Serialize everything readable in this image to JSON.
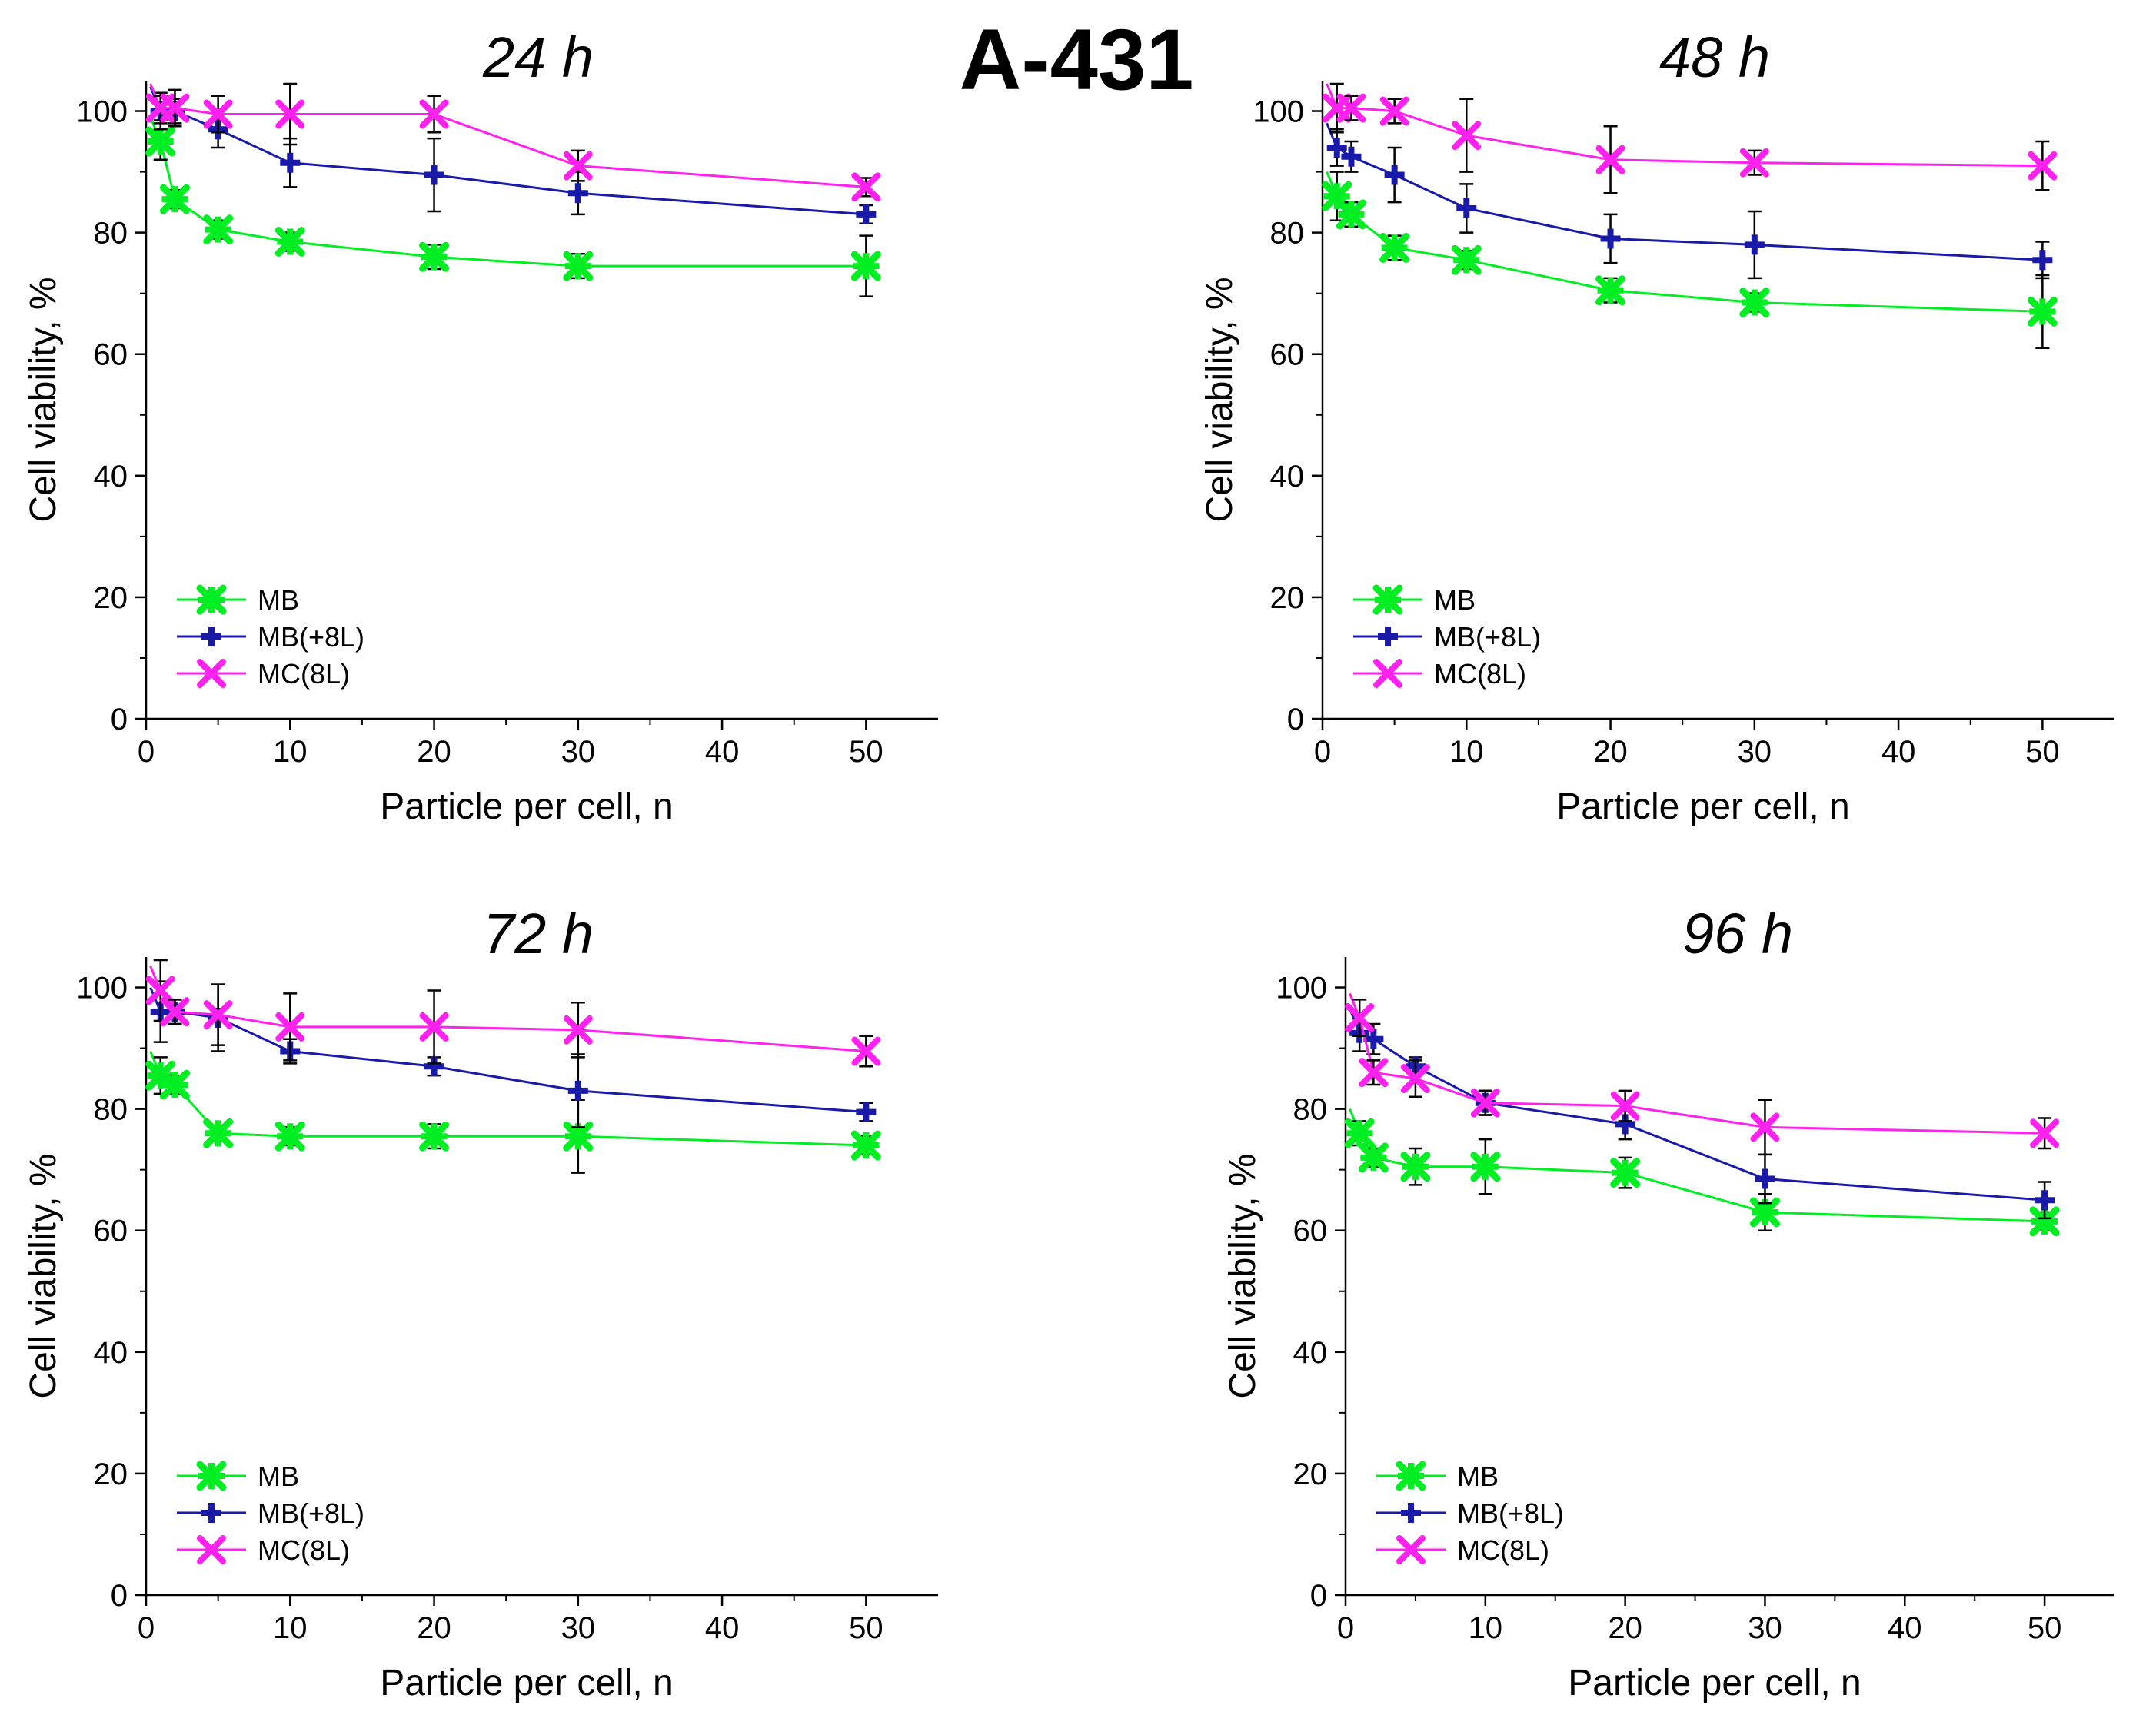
{
  "figure_title": "A-431",
  "colors": {
    "MB": "#00ee22",
    "MB(+8L)": "#1a1aa8",
    "MC(8L)": "#ff22ee",
    "error_bar": "#000000"
  },
  "chart_data": [
    {
      "type": "line",
      "title": "24 h",
      "xlabel": "Particle per cell, n",
      "ylabel": "Cell viability, %",
      "xlim": [
        0,
        55
      ],
      "ylim": [
        0,
        105
      ],
      "xticks": [
        0,
        10,
        20,
        30,
        40,
        50
      ],
      "yticks": [
        0,
        20,
        40,
        60,
        80,
        100
      ],
      "x": [
        1,
        2,
        5,
        10,
        20,
        30,
        50
      ],
      "series": [
        {
          "name": "MB",
          "values": [
            95,
            85.5,
            80.5,
            78.5,
            76,
            74.5,
            74.5
          ],
          "errors": [
            3,
            1.5,
            1.5,
            1.5,
            2,
            2,
            5
          ]
        },
        {
          "name": "MB(+8L)",
          "values": [
            100,
            100,
            97,
            91.5,
            89.5,
            86.5,
            83
          ],
          "errors": [
            3,
            2,
            3,
            4,
            6,
            3.5,
            1.5
          ]
        },
        {
          "name": "MC(8L)",
          "values": [
            100.5,
            100.5,
            99.5,
            99.5,
            99.5,
            91,
            87.5
          ],
          "errors": [
            2,
            3,
            3,
            5,
            3,
            2.5,
            1.5
          ]
        }
      ],
      "legend": "bottom-left"
    },
    {
      "type": "line",
      "title": "48 h",
      "xlabel": "Particle per cell, n",
      "ylabel": "Cell viability, %",
      "xlim": [
        0,
        55
      ],
      "ylim": [
        0,
        105
      ],
      "xticks": [
        0,
        10,
        20,
        30,
        40,
        50
      ],
      "yticks": [
        0,
        20,
        40,
        60,
        80,
        100
      ],
      "x": [
        1,
        2,
        5,
        10,
        20,
        30,
        50
      ],
      "series": [
        {
          "name": "MB",
          "values": [
            86,
            83,
            77.5,
            75.5,
            70.5,
            68.5,
            67
          ],
          "errors": [
            4,
            2,
            2,
            1.5,
            2,
            1.5,
            6
          ]
        },
        {
          "name": "MB(+8L)",
          "values": [
            94,
            92.5,
            89.5,
            84,
            79,
            78,
            75.5
          ],
          "errors": [
            3,
            2.5,
            4.5,
            4,
            4,
            5.5,
            3
          ]
        },
        {
          "name": "MC(8L)",
          "values": [
            100.5,
            100.5,
            100,
            96,
            92,
            91.5,
            91
          ],
          "errors": [
            4,
            2,
            2,
            6,
            5.5,
            2,
            4
          ]
        }
      ],
      "legend": "bottom-left"
    },
    {
      "type": "line",
      "title": "72 h",
      "xlabel": "Particle per cell, n",
      "ylabel": "Cell viability, %",
      "xlim": [
        0,
        55
      ],
      "ylim": [
        0,
        105
      ],
      "xticks": [
        0,
        10,
        20,
        30,
        40,
        50
      ],
      "yticks": [
        0,
        20,
        40,
        60,
        80,
        100
      ],
      "x": [
        1,
        2,
        5,
        10,
        20,
        30,
        50
      ],
      "series": [
        {
          "name": "MB",
          "values": [
            85.5,
            84,
            76,
            75.5,
            75.5,
            75.5,
            74
          ],
          "errors": [
            3,
            1.5,
            1,
            1.5,
            2,
            6,
            1.5
          ]
        },
        {
          "name": "MB(+8L)",
          "values": [
            96,
            96,
            95,
            89.5,
            87,
            83,
            79.5
          ],
          "errors": [
            5,
            2,
            5.5,
            2,
            1.5,
            6,
            1.5
          ]
        },
        {
          "name": "MC(8L)",
          "values": [
            99.5,
            96,
            95.5,
            93.5,
            93.5,
            93,
            89.5
          ],
          "errors": [
            5,
            2,
            5,
            5.5,
            6,
            4.5,
            2.5
          ]
        }
      ],
      "legend": "bottom-left"
    },
    {
      "type": "line",
      "title": "96 h",
      "xlabel": "Particle per cell, n",
      "ylabel": "Cell viability, %",
      "xlim": [
        0,
        55
      ],
      "ylim": [
        0,
        105
      ],
      "xticks": [
        0,
        10,
        20,
        30,
        40,
        50
      ],
      "yticks": [
        0,
        20,
        40,
        60,
        80,
        100
      ],
      "x": [
        1,
        2,
        5,
        10,
        20,
        30,
        50
      ],
      "series": [
        {
          "name": "MB",
          "values": [
            76,
            72,
            70.5,
            70.5,
            69.5,
            63,
            61.5
          ],
          "errors": [
            2,
            1.5,
            3,
            4.5,
            2.5,
            3,
            1.5
          ]
        },
        {
          "name": "MB(+8L)",
          "values": [
            92.5,
            91.5,
            87,
            81,
            77.5,
            68.5,
            65
          ],
          "errors": [
            3,
            2.5,
            1.5,
            2,
            2.5,
            4,
            3
          ]
        },
        {
          "name": "MC(8L)",
          "values": [
            95,
            86,
            85,
            81,
            80.5,
            77,
            76
          ],
          "errors": [
            3,
            2,
            3,
            2,
            2.5,
            4.5,
            2.5
          ]
        }
      ],
      "legend": "bottom-left"
    }
  ]
}
